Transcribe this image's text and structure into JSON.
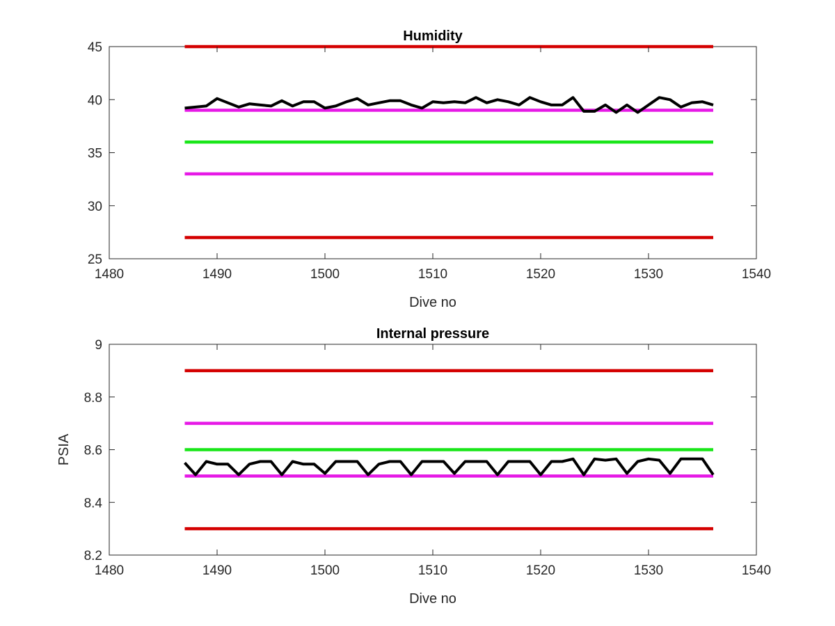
{
  "chart_data": [
    {
      "type": "line",
      "title": "Humidity",
      "xlabel": "Dive no",
      "ylabel": "",
      "xlim": [
        1480,
        1540
      ],
      "ylim": [
        25,
        45
      ],
      "xticks": [
        1480,
        1490,
        1500,
        1510,
        1520,
        1530,
        1540
      ],
      "yticks": [
        25,
        30,
        35,
        40,
        45
      ],
      "x_tick_labels": [
        "1480",
        "1490",
        "1500",
        "1510",
        "1520",
        "1530",
        "1540"
      ],
      "y_tick_labels": [
        "25",
        "30",
        "35",
        "40",
        "45"
      ],
      "grid": false,
      "legend": "none",
      "reference_lines": [
        {
          "y": 45,
          "x_range": [
            1487,
            1536
          ],
          "color": "#d40000"
        },
        {
          "y": 39,
          "x_range": [
            1487,
            1536
          ],
          "color": "#e619e6"
        },
        {
          "y": 36,
          "x_range": [
            1487,
            1536
          ],
          "color": "#19e619"
        },
        {
          "y": 33,
          "x_range": [
            1487,
            1536
          ],
          "color": "#e619e6"
        },
        {
          "y": 27,
          "x_range": [
            1487,
            1536
          ],
          "color": "#d40000"
        }
      ],
      "series": [
        {
          "color": "#000000",
          "x": [
            1487,
            1488,
            1489,
            1490,
            1491,
            1492,
            1493,
            1494,
            1495,
            1496,
            1497,
            1498,
            1499,
            1500,
            1501,
            1502,
            1503,
            1504,
            1505,
            1506,
            1507,
            1508,
            1509,
            1510,
            1511,
            1512,
            1513,
            1514,
            1515,
            1516,
            1517,
            1518,
            1519,
            1520,
            1521,
            1522,
            1523,
            1524,
            1525,
            1526,
            1527,
            1528,
            1529,
            1530,
            1531,
            1532,
            1533,
            1534,
            1535,
            1536
          ],
          "values": [
            39.2,
            39.3,
            39.4,
            40.1,
            39.7,
            39.3,
            39.6,
            39.5,
            39.4,
            39.9,
            39.4,
            39.8,
            39.8,
            39.2,
            39.4,
            39.8,
            40.1,
            39.5,
            39.7,
            39.9,
            39.9,
            39.5,
            39.2,
            39.8,
            39.7,
            39.8,
            39.7,
            40.2,
            39.7,
            40.0,
            39.8,
            39.5,
            40.2,
            39.8,
            39.5,
            39.5,
            40.2,
            38.9,
            38.9,
            39.5,
            38.8,
            39.5,
            38.8,
            39.5,
            40.2,
            40.0,
            39.3,
            39.7,
            39.8,
            39.5
          ]
        }
      ]
    },
    {
      "type": "line",
      "title": "Internal pressure",
      "xlabel": "Dive no",
      "ylabel": "PSIA",
      "xlim": [
        1480,
        1540
      ],
      "ylim": [
        8.2,
        9.0
      ],
      "xticks": [
        1480,
        1490,
        1500,
        1510,
        1520,
        1530,
        1540
      ],
      "yticks": [
        8.2,
        8.4,
        8.6,
        8.8,
        9.0
      ],
      "x_tick_labels": [
        "1480",
        "1490",
        "1500",
        "1510",
        "1520",
        "1530",
        "1540"
      ],
      "y_tick_labels": [
        "8.2",
        "8.4",
        "8.6",
        "8.8",
        "9"
      ],
      "grid": false,
      "legend": "none",
      "reference_lines": [
        {
          "y": 8.9,
          "x_range": [
            1487,
            1536
          ],
          "color": "#d40000"
        },
        {
          "y": 8.7,
          "x_range": [
            1487,
            1536
          ],
          "color": "#e619e6"
        },
        {
          "y": 8.6,
          "x_range": [
            1487,
            1536
          ],
          "color": "#19e619"
        },
        {
          "y": 8.5,
          "x_range": [
            1487,
            1536
          ],
          "color": "#e619e6"
        },
        {
          "y": 8.3,
          "x_range": [
            1487,
            1536
          ],
          "color": "#d40000"
        }
      ],
      "series": [
        {
          "color": "#000000",
          "x": [
            1487,
            1488,
            1489,
            1490,
            1491,
            1492,
            1493,
            1494,
            1495,
            1496,
            1497,
            1498,
            1499,
            1500,
            1501,
            1502,
            1503,
            1504,
            1505,
            1506,
            1507,
            1508,
            1509,
            1510,
            1511,
            1512,
            1513,
            1514,
            1515,
            1516,
            1517,
            1518,
            1519,
            1520,
            1521,
            1522,
            1523,
            1524,
            1525,
            1526,
            1527,
            1528,
            1529,
            1530,
            1531,
            1532,
            1533,
            1534,
            1535,
            1536
          ],
          "values": [
            8.55,
            8.505,
            8.555,
            8.545,
            8.545,
            8.505,
            8.545,
            8.555,
            8.555,
            8.505,
            8.555,
            8.545,
            8.545,
            8.51,
            8.555,
            8.555,
            8.555,
            8.505,
            8.545,
            8.555,
            8.555,
            8.505,
            8.555,
            8.555,
            8.555,
            8.51,
            8.555,
            8.555,
            8.555,
            8.505,
            8.555,
            8.555,
            8.555,
            8.505,
            8.555,
            8.555,
            8.565,
            8.505,
            8.565,
            8.56,
            8.565,
            8.51,
            8.555,
            8.565,
            8.56,
            8.51,
            8.565,
            8.565,
            8.565,
            8.505
          ]
        }
      ]
    }
  ]
}
